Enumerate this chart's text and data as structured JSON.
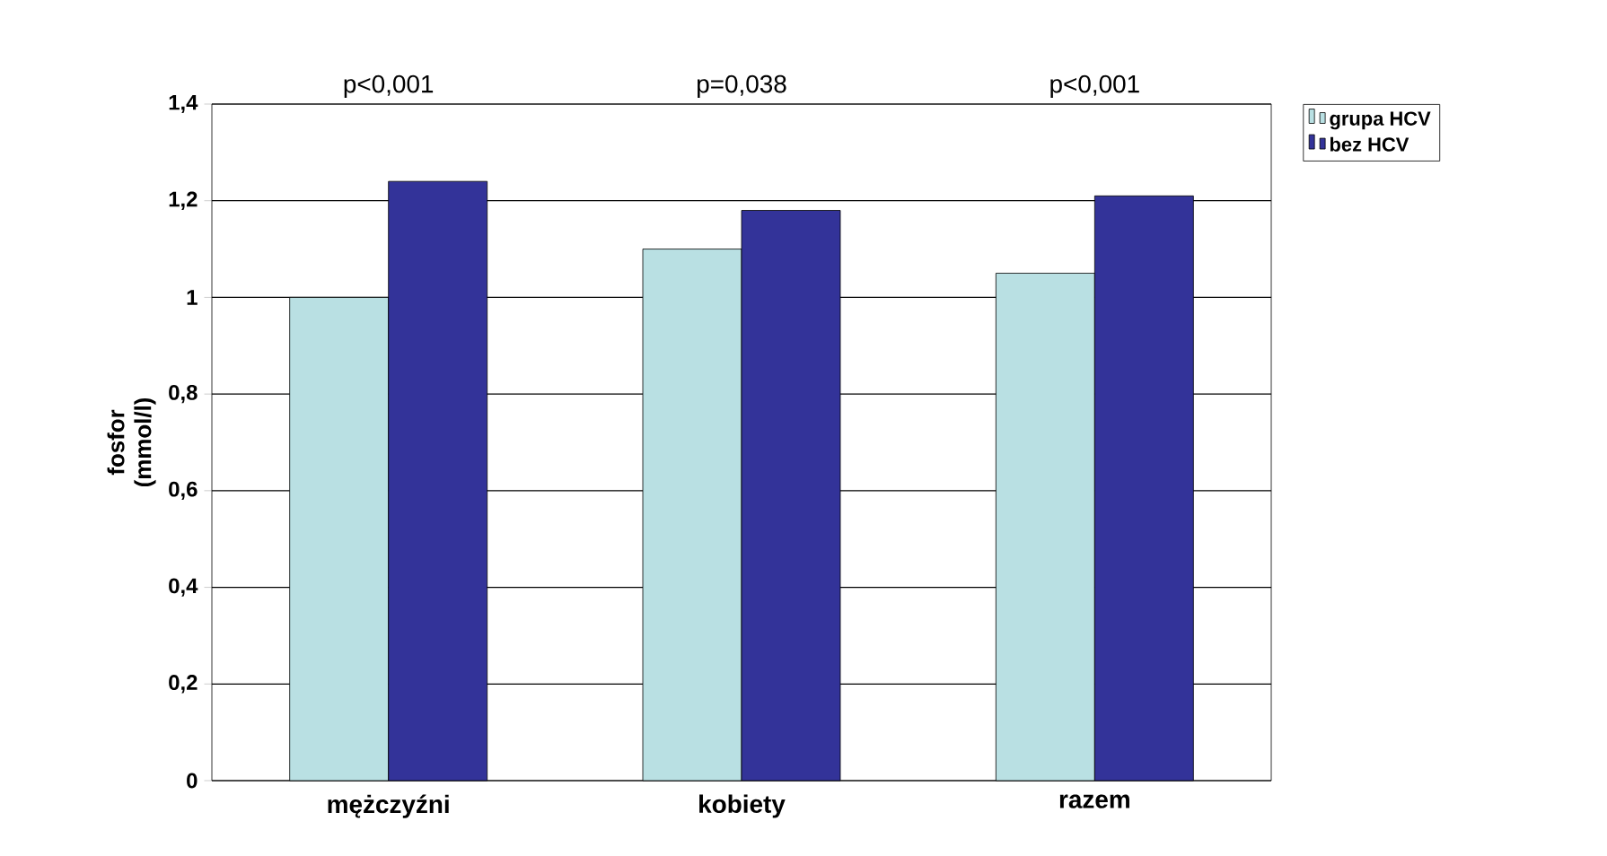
{
  "chart_data": {
    "type": "bar",
    "ylabel": "fosfor (mmol/l)",
    "categories": [
      "mężczyźni",
      "kobiety",
      "razem"
    ],
    "series": [
      {
        "name": "grupa HCV",
        "color": "#b9e0e3",
        "values": [
          1.0,
          1.1,
          1.05
        ]
      },
      {
        "name": "bez HCV",
        "color": "#333399",
        "values": [
          1.24,
          1.18,
          1.21
        ]
      }
    ],
    "ylim": [
      0,
      1.4
    ],
    "yticks": [
      0,
      {
        "value": 0.2,
        "label": "0,2"
      },
      {
        "value": 0.4,
        "label": "0,4"
      },
      {
        "value": 0.6,
        "label": "0,6"
      },
      {
        "value": 0.8,
        "label": "0,8"
      },
      1,
      {
        "value": 1.2,
        "label": "1,2"
      },
      {
        "value": 1.4,
        "label": "1,4"
      }
    ],
    "annotations": [
      "p<0,001",
      "p=0,038",
      "p<0,001"
    ],
    "grid": "y",
    "legend": "top right"
  }
}
